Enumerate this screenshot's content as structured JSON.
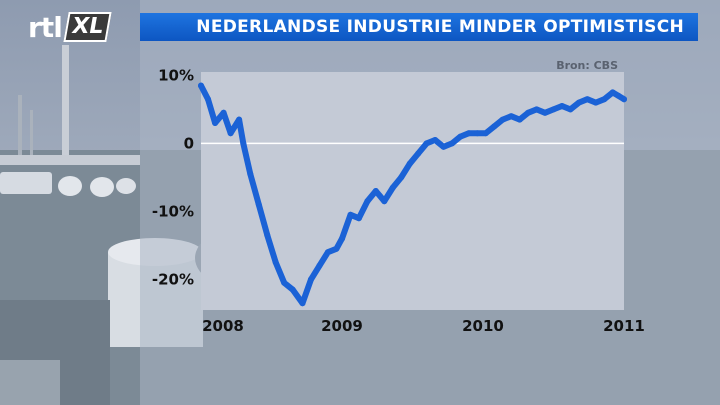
{
  "brand": {
    "logo_left": "rtl",
    "logo_right": "XL"
  },
  "header": {
    "title": "NEDERLANDSE INDUSTRIE MINDER OPTIMISTISCH"
  },
  "colors": {
    "line": "#1b62d6",
    "title_bar": "#0d5cc8",
    "plot_bg": "#c4cad6"
  },
  "chart_data": {
    "type": "line",
    "source": "Bron: CBS",
    "y_ticks": [
      {
        "value": 10,
        "label": "10%"
      },
      {
        "value": 0,
        "label": "0"
      },
      {
        "value": -10,
        "label": "-10%"
      },
      {
        "value": -20,
        "label": "-20%"
      }
    ],
    "x_ticks": [
      {
        "value": 2008,
        "label": "2008"
      },
      {
        "value": 2009,
        "label": "2009"
      },
      {
        "value": 2010,
        "label": "2010"
      },
      {
        "value": 2011,
        "label": "2011"
      }
    ],
    "xlim": [
      2008,
      2011
    ],
    "ylim": [
      -24.5,
      10.5
    ],
    "series": [
      {
        "x": [
          2008.0,
          2008.05,
          2008.1,
          2008.16,
          2008.21,
          2008.27,
          2008.3,
          2008.35,
          2008.41,
          2008.47,
          2008.53,
          2008.59,
          2008.65,
          2008.72,
          2008.78,
          2008.84,
          2008.9,
          2008.96,
          2009.0,
          2009.06,
          2009.12,
          2009.18,
          2009.24,
          2009.3,
          2009.36,
          2009.42,
          2009.48,
          2009.54,
          2009.6,
          2009.66,
          2009.72,
          2009.78,
          2009.84,
          2009.9,
          2009.96,
          2010.02,
          2010.08,
          2010.14,
          2010.2,
          2010.26,
          2010.32,
          2010.38,
          2010.44,
          2010.5,
          2010.56,
          2010.62,
          2010.68,
          2010.74,
          2010.8,
          2010.86,
          2010.92,
          2010.96,
          2011.0
        ],
        "y": [
          8.5,
          6.5,
          3.0,
          4.5,
          1.5,
          3.5,
          0.0,
          -4.5,
          -9.0,
          -13.5,
          -17.5,
          -20.5,
          -21.5,
          -23.5,
          -20.0,
          -18.0,
          -16.0,
          -15.5,
          -14.0,
          -10.5,
          -11.0,
          -8.5,
          -7.0,
          -8.5,
          -6.5,
          -5.0,
          -3.0,
          -1.5,
          0.0,
          0.5,
          -0.5,
          0.0,
          1.0,
          1.5,
          1.5,
          1.5,
          2.5,
          3.5,
          4.0,
          3.5,
          4.5,
          5.0,
          4.5,
          5.0,
          5.5,
          5.0,
          6.0,
          6.5,
          6.0,
          6.5,
          7.5,
          7.0,
          6.5
        ]
      }
    ]
  }
}
